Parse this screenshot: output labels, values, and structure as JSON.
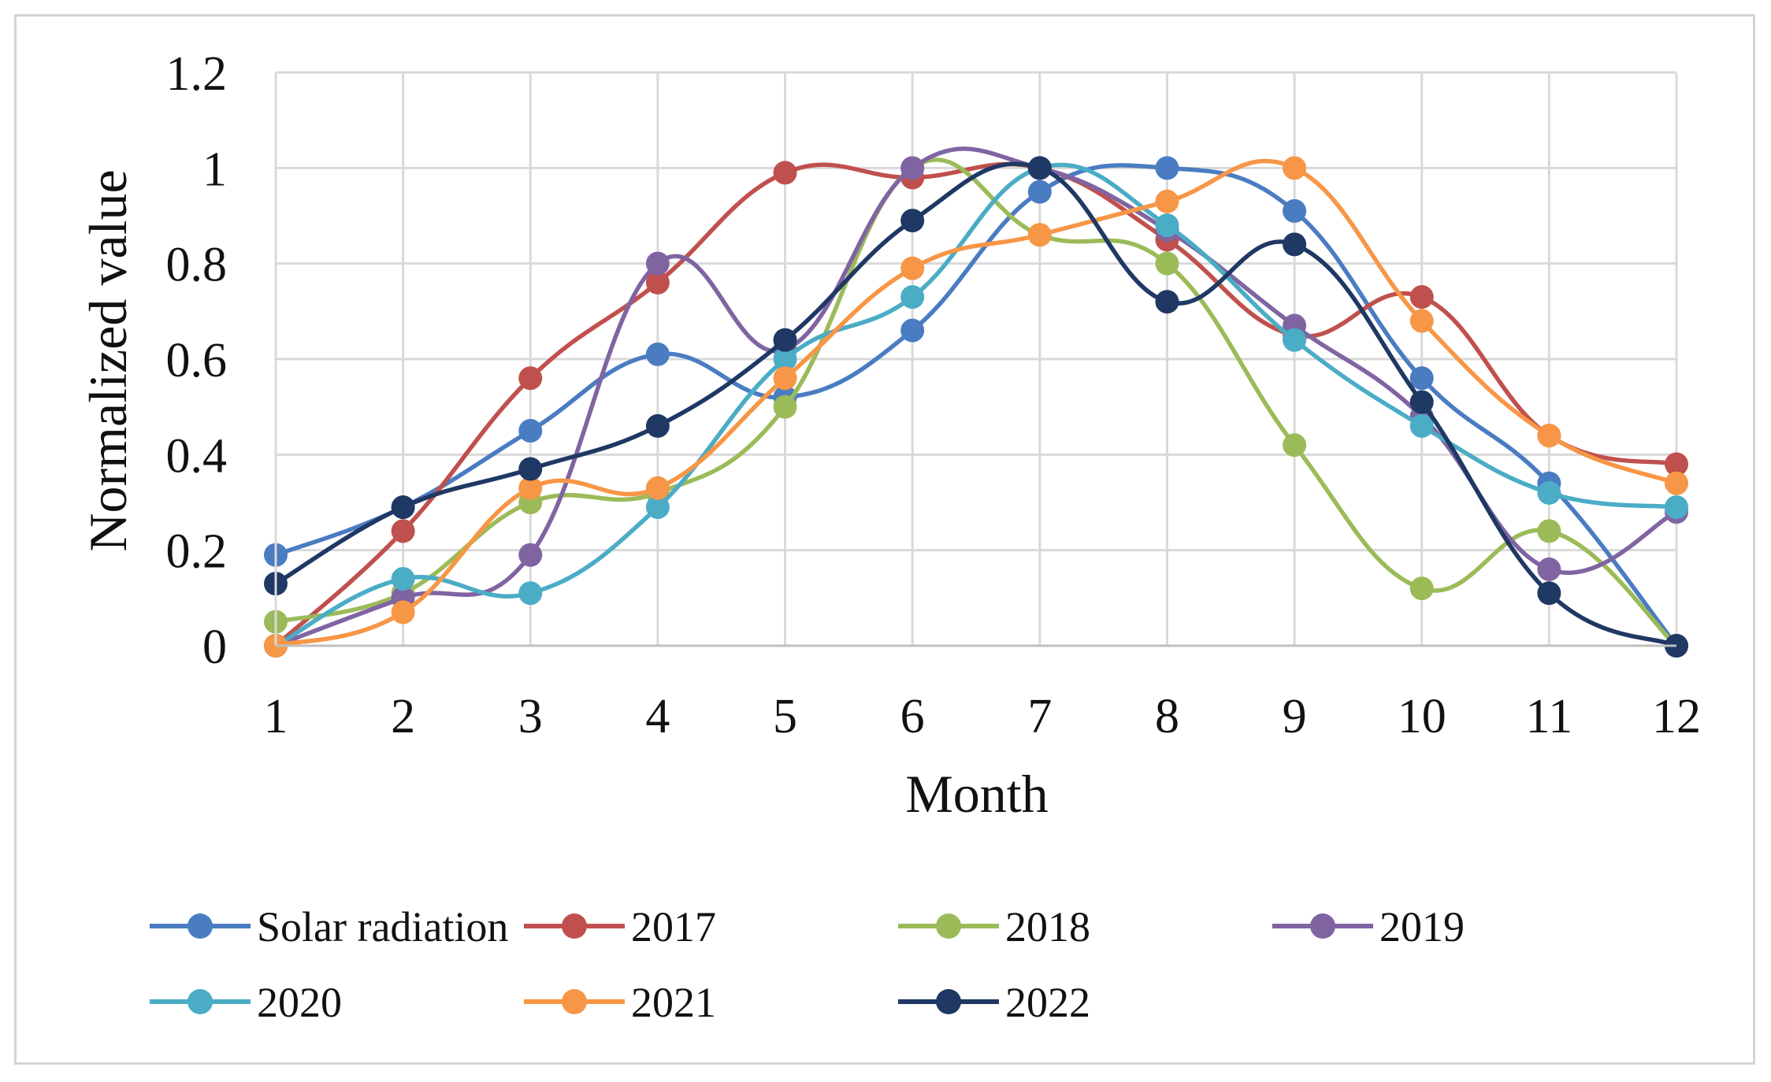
{
  "chart_data": {
    "type": "line",
    "title": "",
    "xlabel": "Month",
    "ylabel": "Normalized value",
    "categories": [
      "1",
      "2",
      "3",
      "4",
      "5",
      "6",
      "7",
      "8",
      "9",
      "10",
      "11",
      "12"
    ],
    "y_ticks": [
      "0",
      "0.2",
      "0.4",
      "0.6",
      "0.8",
      "1",
      "1.2"
    ],
    "ylim": [
      0,
      1.2
    ],
    "grid": true,
    "legend_position": "bottom",
    "series": [
      {
        "name": "Solar radiation",
        "color": "#4a7cc2",
        "values": [
          0.19,
          0.29,
          0.45,
          0.61,
          0.52,
          0.66,
          0.95,
          1.0,
          0.91,
          0.56,
          0.34,
          0.0
        ]
      },
      {
        "name": "2017",
        "color": "#c0504d",
        "values": [
          0.0,
          0.24,
          0.56,
          0.76,
          0.99,
          0.98,
          1.0,
          0.85,
          0.65,
          0.73,
          0.44,
          0.38
        ]
      },
      {
        "name": "2018",
        "color": "#9bbb59",
        "values": [
          0.05,
          0.11,
          0.3,
          0.32,
          0.5,
          1.0,
          0.86,
          0.8,
          0.42,
          0.12,
          0.24,
          0.0
        ]
      },
      {
        "name": "2019",
        "color": "#8064a2",
        "values": [
          0.0,
          0.1,
          0.19,
          0.8,
          0.62,
          1.0,
          1.0,
          0.87,
          0.67,
          0.48,
          0.16,
          0.28
        ]
      },
      {
        "name": "2020",
        "color": "#4bacc6",
        "values": [
          0.0,
          0.14,
          0.11,
          0.29,
          0.6,
          0.73,
          1.0,
          0.88,
          0.64,
          0.46,
          0.32,
          0.29
        ]
      },
      {
        "name": "2021",
        "color": "#f79646",
        "values": [
          0.0,
          0.07,
          0.33,
          0.33,
          0.56,
          0.79,
          0.86,
          0.93,
          1.0,
          0.68,
          0.44,
          0.34
        ]
      },
      {
        "name": "2022",
        "color": "#1f3864",
        "values": [
          0.13,
          0.29,
          0.37,
          0.46,
          0.64,
          0.89,
          1.0,
          0.72,
          0.84,
          0.51,
          0.11,
          0.0
        ]
      }
    ]
  }
}
